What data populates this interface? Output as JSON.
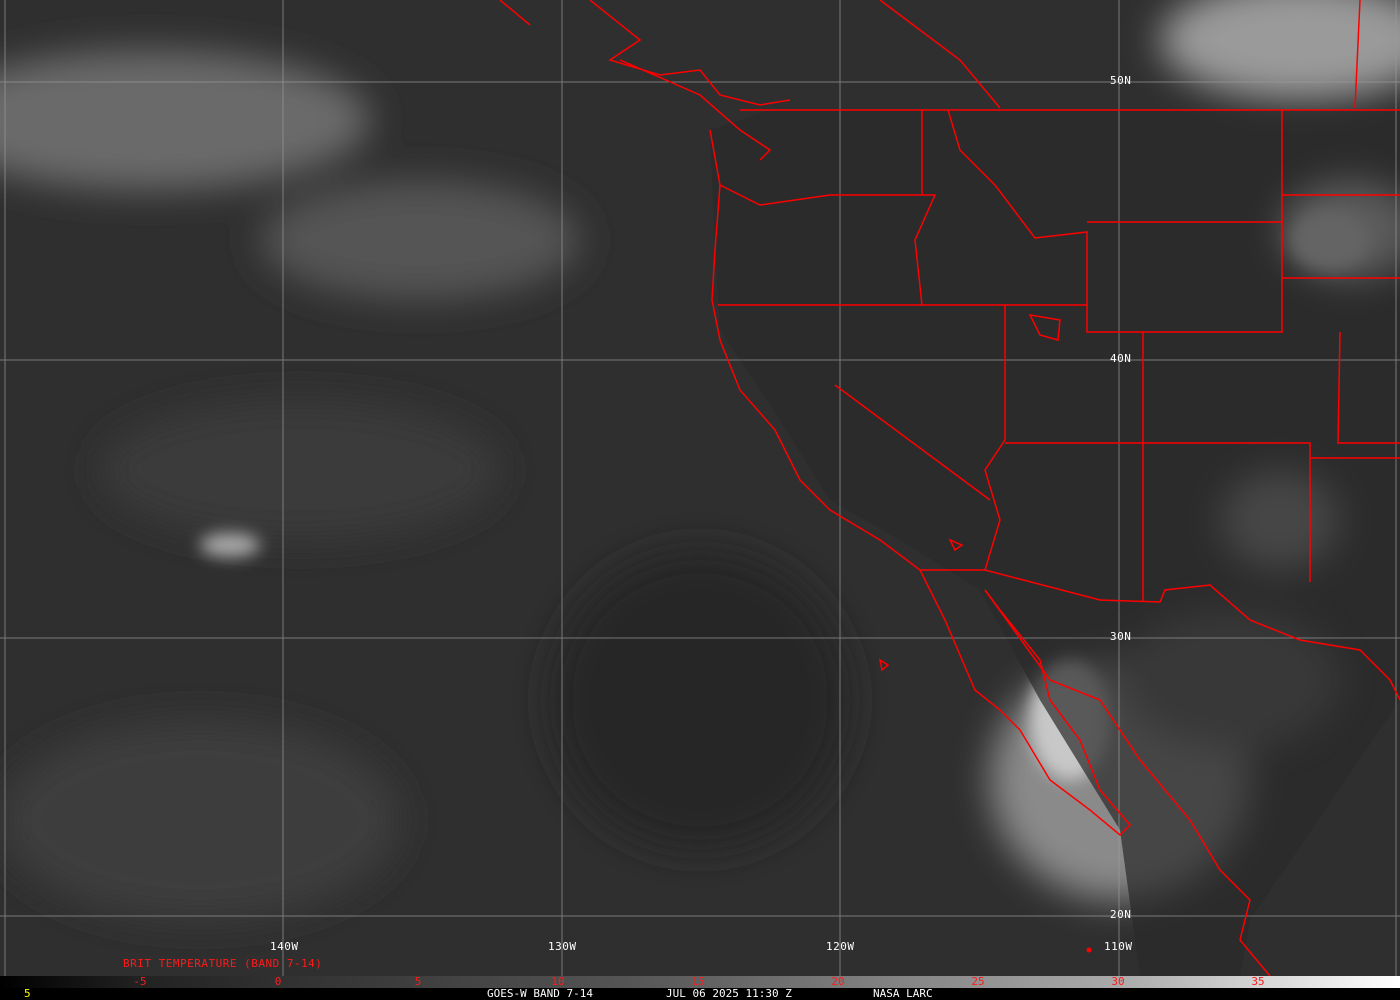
{
  "map": {
    "grid_latitudes": [
      "50N",
      "40N",
      "30N",
      "20N"
    ],
    "grid_longitudes": [
      "140W",
      "130W",
      "120W",
      "110W"
    ],
    "border_color": "#ff0000",
    "grid_color": "#9a9a9a"
  },
  "legend": {
    "title": "BRIT TEMPERATURE (BAND 7-14)",
    "ticks": [
      "-5",
      "0",
      "5",
      "10",
      "15",
      "20",
      "25",
      "30",
      "35"
    ],
    "tick_color": "#ff1a1a"
  },
  "footer": {
    "frame_number": "5",
    "satellite": "GOES-W BAND 7-14",
    "datetime": "JUL 06 2025 11:30 Z",
    "source": "NASA LARC"
  }
}
